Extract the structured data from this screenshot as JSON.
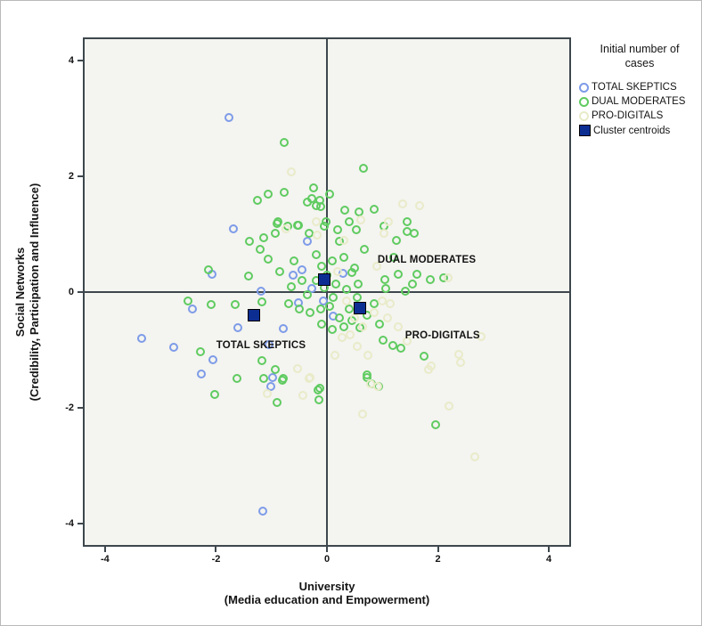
{
  "chart_data": {
    "type": "scatter",
    "title": "",
    "xlabel": [
      "University",
      "(Media education and Empowerment)"
    ],
    "ylabel": [
      "Social Networks",
      "(Credibility, Participation and Influence)"
    ],
    "xlim": [
      -4.4,
      4.4
    ],
    "ylim": [
      -4.4,
      4.4
    ],
    "x_ticks": [
      -4,
      -2,
      0,
      2,
      4
    ],
    "y_ticks": [
      4,
      2,
      0,
      -2,
      -4
    ],
    "grid": false,
    "plot_background": "#f4f4f0",
    "axis_color": "#3d474d",
    "reference_lines": {
      "x": 0,
      "y": 0
    },
    "legend": {
      "title": "Initial number of cases",
      "position": "outside-top-right"
    },
    "series": [
      {
        "name": "TOTAL SKEPTICS",
        "marker": "open-circle",
        "color": "#7d9be8",
        "points": [
          [
            -1.78,
            3.03
          ],
          [
            -1.7,
            1.1
          ],
          [
            -2.09,
            0.31
          ],
          [
            -1.19,
            0.02
          ],
          [
            -0.62,
            0.3
          ],
          [
            -0.46,
            0.39
          ],
          [
            -0.35,
            0.88
          ],
          [
            0.29,
            0.32
          ],
          [
            -3.37,
            -0.8
          ],
          [
            -2.79,
            -0.96
          ],
          [
            -2.45,
            -0.3
          ],
          [
            -2.07,
            -1.18
          ],
          [
            -2.28,
            -1.42
          ],
          [
            -1.61,
            -0.62
          ],
          [
            -0.99,
            -1.48
          ],
          [
            -1.02,
            -1.64
          ],
          [
            -1.16,
            -3.81
          ],
          [
            -0.79,
            -0.63
          ],
          [
            -1.05,
            -0.91
          ],
          [
            -0.06,
            -0.15
          ],
          [
            -0.52,
            -0.18
          ],
          [
            0.12,
            -0.42
          ],
          [
            -0.28,
            0.06
          ]
        ]
      },
      {
        "name": "DUAL MODERATES",
        "marker": "open-circle",
        "color": "#5fcb60",
        "points": [
          [
            -0.78,
            2.61
          ],
          [
            0.67,
            2.15
          ],
          [
            -1.26,
            1.6
          ],
          [
            -1.07,
            1.71
          ],
          [
            -0.78,
            1.74
          ],
          [
            -0.24,
            1.82
          ],
          [
            0.05,
            1.7
          ],
          [
            -0.36,
            1.56
          ],
          [
            -0.28,
            1.63
          ],
          [
            -0.13,
            1.6
          ],
          [
            -0.2,
            1.5
          ],
          [
            -0.12,
            1.49
          ],
          [
            0.32,
            1.42
          ],
          [
            0.86,
            1.44
          ],
          [
            0.59,
            1.39
          ],
          [
            0.41,
            1.23
          ],
          [
            1.46,
            1.23
          ],
          [
            -0.89,
            1.23
          ],
          [
            -0.71,
            1.14
          ],
          [
            -0.51,
            1.16
          ],
          [
            -0.01,
            1.23
          ],
          [
            -0.05,
            1.14
          ],
          [
            0.2,
            1.08
          ],
          [
            0.53,
            1.08
          ],
          [
            1.04,
            1.14
          ],
          [
            1.45,
            1.05
          ],
          [
            -0.94,
            1.03
          ],
          [
            -1.15,
            0.94
          ],
          [
            -1.4,
            0.89
          ],
          [
            -1.22,
            0.74
          ],
          [
            -2.15,
            0.39
          ],
          [
            -1.43,
            0.28
          ],
          [
            0.22,
            0.88
          ],
          [
            0.3,
            0.6
          ],
          [
            0.68,
            0.74
          ],
          [
            1.26,
            0.9
          ],
          [
            1.59,
            1.02
          ],
          [
            0.46,
            0.34
          ],
          [
            0.57,
            0.14
          ],
          [
            0.16,
            0.14
          ],
          [
            1.05,
            0.22
          ],
          [
            1.29,
            0.31
          ],
          [
            1.64,
            0.31
          ],
          [
            1.88,
            0.22
          ],
          [
            2.12,
            0.25
          ],
          [
            1.07,
            0.06
          ],
          [
            1.55,
            0.14
          ],
          [
            1.42,
            0.02
          ],
          [
            1.21,
            0.6
          ],
          [
            -0.9,
            1.2
          ],
          [
            -0.54,
            1.16
          ],
          [
            -0.32,
            1.03
          ],
          [
            -1.07,
            0.57
          ],
          [
            -0.6,
            0.55
          ],
          [
            -0.45,
            0.2
          ],
          [
            -0.2,
            0.65
          ],
          [
            -0.1,
            0.45
          ],
          [
            0.0,
            0.3
          ],
          [
            -0.35,
            -0.05
          ],
          [
            -0.2,
            0.2
          ],
          [
            -0.05,
            0.08
          ],
          [
            0.1,
            0.55
          ],
          [
            0.5,
            0.42
          ],
          [
            0.35,
            0.05
          ],
          [
            0.12,
            -0.1
          ],
          [
            -0.5,
            -0.3
          ],
          [
            -0.65,
            0.1
          ],
          [
            -0.85,
            0.35
          ],
          [
            -0.7,
            -0.2
          ],
          [
            -0.3,
            -0.35
          ],
          [
            -0.12,
            -0.3
          ],
          [
            0.05,
            -0.25
          ],
          [
            0.22,
            -0.45
          ],
          [
            0.4,
            -0.3
          ],
          [
            0.55,
            -0.1
          ],
          [
            0.3,
            -0.6
          ],
          [
            0.1,
            -0.65
          ],
          [
            -0.1,
            -0.55
          ],
          [
            0.45,
            -0.5
          ],
          [
            0.6,
            -0.62
          ],
          [
            0.72,
            -0.4
          ],
          [
            0.85,
            -0.2
          ],
          [
            0.95,
            -0.55
          ],
          [
            -2.53,
            -0.16
          ],
          [
            -2.1,
            -0.21
          ],
          [
            -1.66,
            -0.22
          ],
          [
            -2.29,
            -1.04
          ],
          [
            -2.04,
            -1.78
          ],
          [
            -1.63,
            -1.51
          ],
          [
            -1.18,
            -0.17
          ],
          [
            -1.18,
            -1.2
          ],
          [
            -0.94,
            -1.35
          ],
          [
            -0.79,
            -1.51
          ],
          [
            -0.9,
            -1.92
          ],
          [
            -0.16,
            -1.71
          ],
          [
            -0.14,
            -1.87
          ],
          [
            -1.15,
            -1.5
          ],
          [
            -0.81,
            -1.54
          ],
          [
            -0.13,
            -1.68
          ],
          [
            0.72,
            -1.48
          ],
          [
            1.02,
            -0.83
          ],
          [
            1.2,
            -0.93
          ],
          [
            1.35,
            -0.97
          ],
          [
            1.77,
            -1.11
          ],
          [
            0.72,
            -1.44
          ],
          [
            0.81,
            -1.59
          ],
          [
            0.94,
            -1.64
          ],
          [
            1.98,
            -2.31
          ]
        ]
      },
      {
        "name": "PRO-DIGITALS",
        "marker": "open-circle",
        "color": "#e9ebc9",
        "points": [
          [
            -0.64,
            2.09
          ],
          [
            1.37,
            1.54
          ],
          [
            1.69,
            1.51
          ],
          [
            1.12,
            1.22
          ],
          [
            1.04,
            1.03
          ],
          [
            0.62,
            1.25
          ],
          [
            -0.75,
            1.1
          ],
          [
            -0.2,
            1.23
          ],
          [
            -0.18,
            0.99
          ],
          [
            2.2,
            0.25
          ],
          [
            0.3,
            0.9
          ],
          [
            0.9,
            0.45
          ],
          [
            0.2,
            0.35
          ],
          [
            0.35,
            -0.15
          ],
          [
            0.5,
            -0.45
          ],
          [
            0.65,
            -0.6
          ],
          [
            0.42,
            -0.75
          ],
          [
            0.85,
            -0.35
          ],
          [
            1.0,
            -0.15
          ],
          [
            1.1,
            -0.45
          ],
          [
            0.55,
            -0.95
          ],
          [
            0.75,
            -1.1
          ],
          [
            1.3,
            -0.6
          ],
          [
            1.45,
            -0.85
          ],
          [
            0.15,
            -1.1
          ],
          [
            1.15,
            -0.2
          ],
          [
            0.27,
            -0.79
          ],
          [
            2.8,
            -0.77
          ],
          [
            2.4,
            -1.09
          ],
          [
            2.42,
            -1.23
          ],
          [
            1.85,
            -1.35
          ],
          [
            1.9,
            -1.28
          ],
          [
            0.64,
            -2.13
          ],
          [
            2.21,
            -1.98
          ],
          [
            2.69,
            -2.86
          ],
          [
            -1.08,
            -1.76
          ],
          [
            -0.54,
            -1.33
          ],
          [
            -0.3,
            -1.48
          ],
          [
            -0.43,
            -1.79
          ],
          [
            0.8,
            -1.6
          ],
          [
            0.92,
            -1.64
          ],
          [
            -0.32,
            -1.51
          ]
        ]
      }
    ],
    "centroids": {
      "name": "Cluster centroids",
      "marker": "filled-square",
      "color": "#0c2e93",
      "points": [
        [
          -0.05,
          0.22
        ],
        [
          0.6,
          -0.28
        ],
        [
          -1.32,
          -0.4
        ]
      ]
    },
    "annotations": [
      {
        "text": "DUAL MODERATES",
        "x": 0.92,
        "y": 0.56
      },
      {
        "text": "TOTAL SKEPTICS",
        "x": -2.01,
        "y": -0.93
      },
      {
        "text": "PRO-DIGITALS",
        "x": 1.42,
        "y": -0.76
      }
    ]
  }
}
